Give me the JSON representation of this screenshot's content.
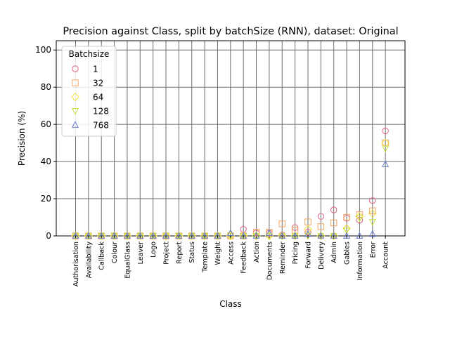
{
  "chart_data": {
    "type": "scatter",
    "title": "Precision against Class, split by batchSize (RNN), dataset: Original",
    "xlabel": "Class",
    "ylabel": "Precision (%)",
    "ylim": [
      0,
      105
    ],
    "yticks": [
      0,
      20,
      40,
      60,
      80,
      100
    ],
    "grid": true,
    "legend_title": "Batchsize",
    "legend_position": "upper-left",
    "categories": [
      "Authorisation",
      "Availability",
      "Callback",
      "Colour",
      "EqualGlass",
      "Leaver",
      "Logo",
      "Project",
      "Report",
      "Status",
      "Template",
      "Weight",
      "Access",
      "Feedback",
      "Action",
      "Documents",
      "Reminder",
      "Pricing",
      "Forward",
      "Delivery",
      "Admin",
      "Gables",
      "Information",
      "Error",
      "Account"
    ],
    "series": [
      {
        "name": "1",
        "marker": "circle",
        "color": "#e0607e",
        "values": [
          0,
          0,
          0,
          0,
          0,
          0,
          0,
          0,
          0,
          0,
          0,
          0,
          0,
          3.5,
          1.5,
          1.5,
          0.5,
          4.5,
          2,
          10.5,
          14,
          9.5,
          8.5,
          19,
          56.5
        ]
      },
      {
        "name": "32",
        "marker": "square",
        "color": "#f4a460",
        "values": [
          0,
          0,
          0,
          0,
          0,
          0,
          0,
          0,
          0,
          0,
          0,
          0,
          0,
          0,
          2,
          2,
          6.5,
          3,
          7.5,
          5,
          7,
          10,
          11.5,
          13.5,
          50
        ]
      },
      {
        "name": "64",
        "marker": "diamond",
        "color": "#f0e040",
        "values": [
          0,
          0,
          0,
          0,
          0,
          0,
          0,
          0,
          0,
          0,
          0,
          0,
          0,
          0,
          0,
          0,
          0,
          0,
          3.5,
          0,
          0,
          4,
          10.5,
          12,
          50
        ]
      },
      {
        "name": "128",
        "marker": "triangle-down",
        "color": "#c8e040",
        "values": [
          0,
          0,
          0,
          0,
          0,
          0,
          0,
          0,
          0,
          0,
          0,
          0,
          0,
          0,
          0,
          0,
          0,
          0,
          0,
          0,
          0,
          3,
          9.5,
          7.5,
          47
        ]
      },
      {
        "name": "768",
        "marker": "triangle-up",
        "color": "#6a7fd0",
        "values": [
          0,
          0,
          0,
          0,
          0,
          0,
          0,
          0,
          0,
          0,
          0,
          0,
          1.5,
          0,
          0,
          1.5,
          0,
          0,
          1,
          0,
          0,
          0,
          0,
          1,
          38.5
        ]
      }
    ]
  }
}
